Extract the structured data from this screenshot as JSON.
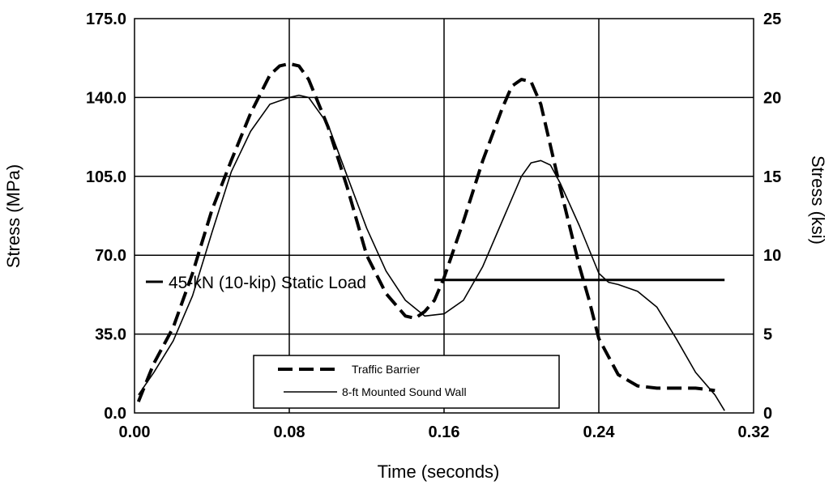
{
  "chart_data": {
    "type": "line",
    "title": "",
    "xlabel": "Time (seconds)",
    "ylabel": "Stress (MPa)",
    "y2label": "Stress (ksi)",
    "xlim": [
      0,
      0.32
    ],
    "ylim": [
      0,
      175
    ],
    "y2lim": [
      0,
      25
    ],
    "x_ticks": [
      "0.00",
      "0.08",
      "0.16",
      "0.24",
      "0.32"
    ],
    "y_ticks": [
      "0.0",
      "35.0",
      "70.0",
      "105.0",
      "140.0",
      "175.0"
    ],
    "y2_ticks": [
      "0",
      "5",
      "10",
      "15",
      "20",
      "25"
    ],
    "grid": true,
    "legend_position": "bottom-center",
    "series": [
      {
        "name": "Traffic Barrier",
        "style": "dashed",
        "x": [
          0.002,
          0.01,
          0.02,
          0.03,
          0.04,
          0.05,
          0.06,
          0.07,
          0.075,
          0.08,
          0.085,
          0.09,
          0.1,
          0.11,
          0.12,
          0.13,
          0.14,
          0.145,
          0.15,
          0.155,
          0.16,
          0.17,
          0.18,
          0.19,
          0.195,
          0.2,
          0.205,
          0.21,
          0.22,
          0.23,
          0.235,
          0.24,
          0.25,
          0.26,
          0.27,
          0.28,
          0.29,
          0.3
        ],
        "y": [
          5,
          22,
          38,
          62,
          90,
          112,
          133,
          150,
          154,
          155,
          154,
          148,
          127,
          100,
          70,
          53,
          43,
          42,
          45,
          50,
          60,
          85,
          112,
          135,
          145,
          148,
          147,
          137,
          100,
          65,
          50,
          33,
          17,
          12,
          11,
          11,
          11,
          10
        ]
      },
      {
        "name": "8-ft Mounted Sound Wall",
        "style": "solid",
        "x": [
          0.002,
          0.01,
          0.02,
          0.03,
          0.04,
          0.05,
          0.06,
          0.07,
          0.08,
          0.085,
          0.09,
          0.1,
          0.11,
          0.12,
          0.13,
          0.14,
          0.15,
          0.16,
          0.17,
          0.18,
          0.19,
          0.2,
          0.205,
          0.21,
          0.215,
          0.22,
          0.23,
          0.24,
          0.245,
          0.25,
          0.26,
          0.27,
          0.28,
          0.29,
          0.3,
          0.305
        ],
        "y": [
          8,
          18,
          32,
          52,
          80,
          107,
          125,
          137,
          140,
          141,
          140,
          128,
          105,
          82,
          63,
          50,
          43,
          44,
          50,
          65,
          85,
          105,
          111,
          112,
          110,
          102,
          83,
          62,
          58,
          57,
          54,
          47,
          33,
          18,
          8,
          1
        ]
      }
    ],
    "reference_line": {
      "label": "45-kN (10-kip) Static Load",
      "y": 59,
      "x_start": 0.155,
      "x_end": 0.305
    }
  }
}
